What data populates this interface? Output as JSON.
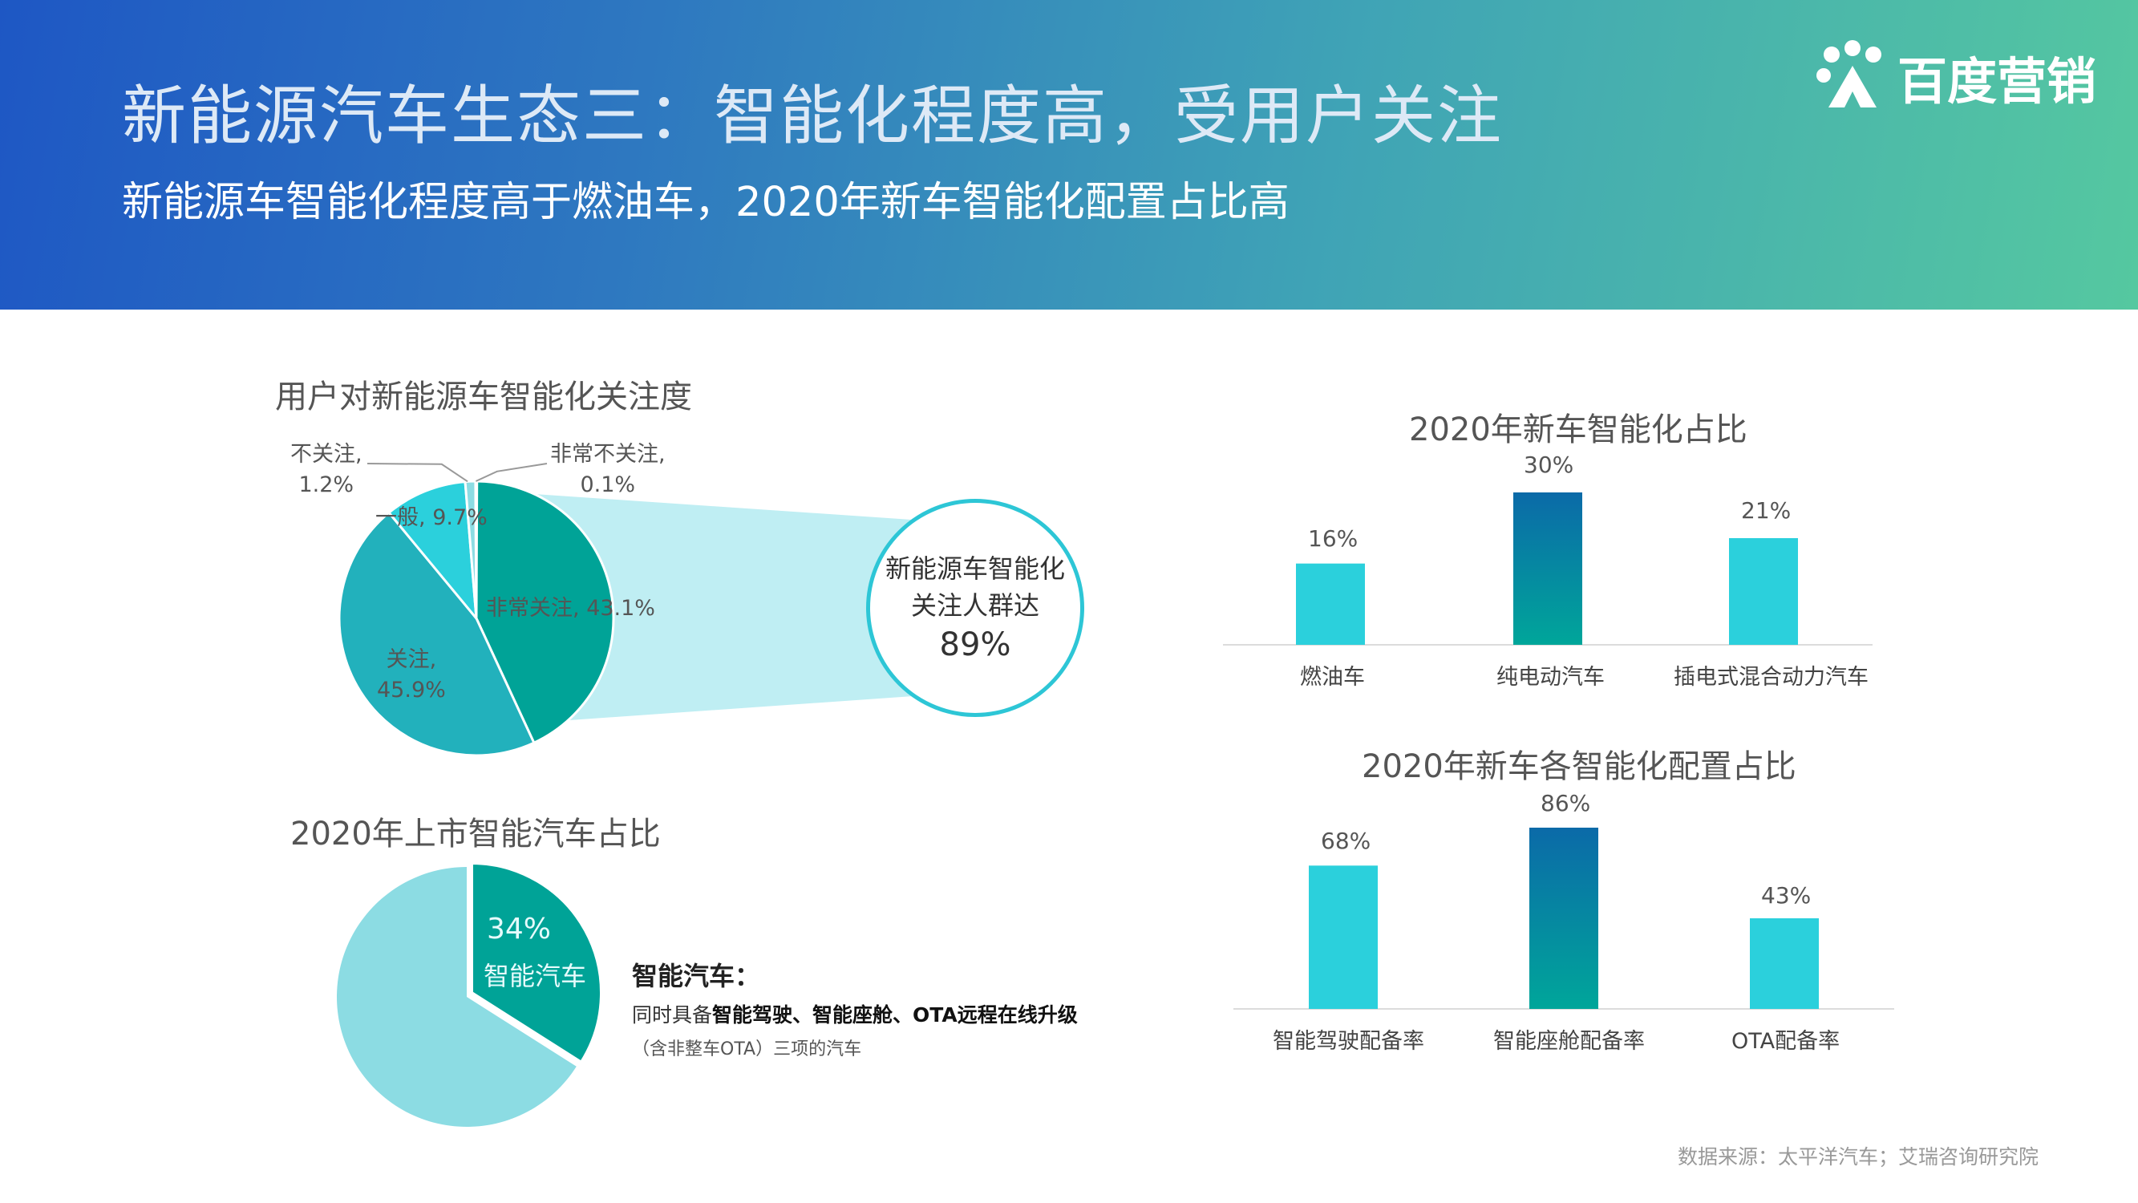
{
  "header": {
    "title": "新能源汽车生态三：智能化程度高，受用户关注",
    "subtitle": "新能源车智能化程度高于燃油车，2020年新车智能化配置占比高",
    "logo_text": "百度营销"
  },
  "callout": {
    "line1": "新能源车智能化",
    "line2": "关注人群达",
    "value": "89%"
  },
  "note": {
    "title": "智能汽车：",
    "line1_prefix": "同时具备",
    "line1_bold": "智能驾驶、智能座舱、OTA远程在线升级",
    "line2": "（含非整车OTA）三项的汽车"
  },
  "source": "数据来源：太平洋汽车；艾瑞咨询研究院",
  "colors": {
    "teal_dark": "#00a397",
    "teal_mid": "#22b1bc",
    "cyan": "#2bd0dc",
    "light_cyan": "#8cdce3",
    "wedge": "#bfeef3",
    "grad_top": "#0b6aa8",
    "grad_bottom": "#00a69a"
  },
  "chart_data": [
    {
      "type": "pie",
      "title": "用户对新能源车智能化关注度",
      "slices": [
        {
          "label_name": "非常关注,",
          "label_value": "43.1%",
          "value": 43.1
        },
        {
          "label_name": "关注,",
          "label_value": "45.9%",
          "value": 45.9
        },
        {
          "label_name": "一般,",
          "label_value": "9.7%",
          "value": 9.7
        },
        {
          "label_name": "不关注,",
          "label_value": "1.2%",
          "value": 1.2
        },
        {
          "label_name": "非常不关注,",
          "label_value": "0.1%",
          "value": 0.1
        }
      ]
    },
    {
      "type": "pie",
      "title": "2020年上市智能汽车占比",
      "slices": [
        {
          "label_name": "智能汽车",
          "label_value": "34%",
          "value": 34
        },
        {
          "label_name": "",
          "label_value": "",
          "value": 66
        }
      ]
    },
    {
      "type": "bar",
      "title": "2020年新车智能化占比",
      "categories": [
        "燃油车",
        "纯电动汽车",
        "插电式混合动力汽车"
      ],
      "values": [
        16,
        30,
        21
      ],
      "labels": [
        "16%",
        "30%",
        "21%"
      ],
      "highlight_index": 1
    },
    {
      "type": "bar",
      "title": "2020年新车各智能化配置占比",
      "categories": [
        "智能驾驶配备率",
        "智能座舱配备率",
        "OTA配备率"
      ],
      "values": [
        68,
        86,
        43
      ],
      "labels": [
        "68%",
        "86%",
        "43%"
      ],
      "highlight_index": 1
    }
  ]
}
